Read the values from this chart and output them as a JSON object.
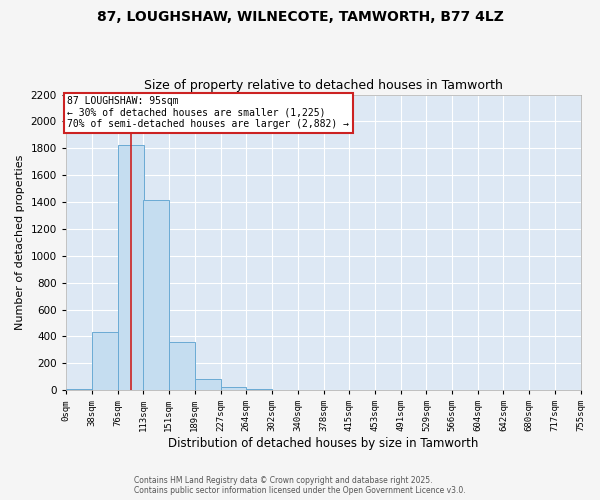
{
  "title1": "87, LOUGHSHAW, WILNECOTE, TAMWORTH, B77 4LZ",
  "title2": "Size of property relative to detached houses in Tamworth",
  "xlabel": "Distribution of detached houses by size in Tamworth",
  "ylabel": "Number of detached properties",
  "bar_color": "#c5ddf0",
  "bar_edge_color": "#6aaad4",
  "background_color": "#dde8f4",
  "grid_color": "#ffffff",
  "fig_facecolor": "#f5f5f5",
  "bin_edges": [
    0,
    38,
    76,
    113,
    151,
    189,
    227,
    264,
    302,
    340,
    378,
    415,
    453,
    491,
    529,
    566,
    604,
    642,
    680,
    717,
    755
  ],
  "bin_labels": [
    "0sqm",
    "38sqm",
    "76sqm",
    "113sqm",
    "151sqm",
    "189sqm",
    "227sqm",
    "264sqm",
    "302sqm",
    "340sqm",
    "378sqm",
    "415sqm",
    "453sqm",
    "491sqm",
    "529sqm",
    "566sqm",
    "604sqm",
    "642sqm",
    "680sqm",
    "717sqm",
    "755sqm"
  ],
  "counts": [
    10,
    430,
    1825,
    1415,
    360,
    80,
    20,
    10,
    0,
    0,
    0,
    0,
    0,
    0,
    0,
    0,
    0,
    0,
    0,
    0
  ],
  "property_size": 95,
  "property_label": "87 LOUGHSHAW: 95sqm",
  "annotation_line1": "← 30% of detached houses are smaller (1,225)",
  "annotation_line2": "70% of semi-detached houses are larger (2,882) →",
  "vline_color": "#cc2222",
  "annotation_box_edge_color": "#cc2222",
  "ylim": [
    0,
    2200
  ],
  "yticks": [
    0,
    200,
    400,
    600,
    800,
    1000,
    1200,
    1400,
    1600,
    1800,
    2000,
    2200
  ],
  "title_fontsize": 10,
  "subtitle_fontsize": 9,
  "footer1": "Contains HM Land Registry data © Crown copyright and database right 2025.",
  "footer2": "Contains public sector information licensed under the Open Government Licence v3.0."
}
